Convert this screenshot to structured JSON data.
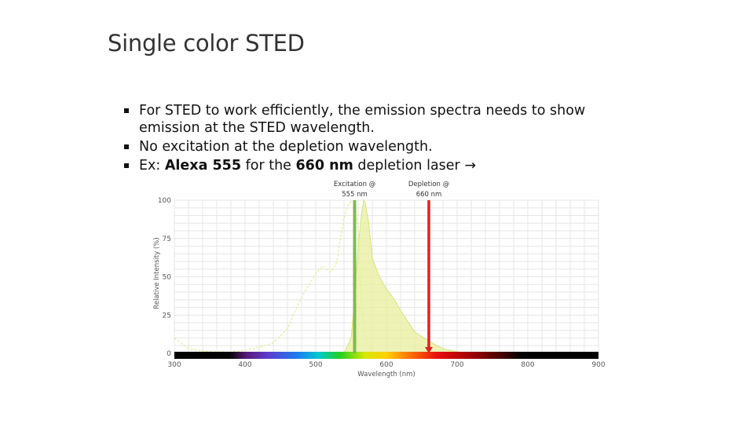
{
  "slide": {
    "title": "Single color STED",
    "bullets": [
      {
        "text": "For STED to work efficiently, the emission spectra needs to show emission at the STED wavelength."
      },
      {
        "text": "No excitation at the depletion wavelength."
      },
      {
        "parts": [
          "Ex: ",
          "Alexa 555",
          " for the ",
          "660 nm",
          " depletion laser ",
          "→"
        ]
      }
    ]
  },
  "chart_data": {
    "type": "area",
    "xlabel": "Wavelength (nm)",
    "ylabel": "Relative Intensity (%)",
    "xlim": [
      300,
      900
    ],
    "ylim": [
      0,
      100
    ],
    "x_ticks": [
      "300",
      "400",
      "500",
      "600",
      "700",
      "800",
      "900"
    ],
    "y_ticks": [
      "100",
      "75",
      "50",
      "25",
      "0"
    ],
    "grid": true,
    "spectrum_band": true,
    "series": [
      {
        "role": "excitation",
        "style": "dashed",
        "color": "#e4ee9a",
        "x": [
          300,
          320,
          340,
          360,
          380,
          400,
          420,
          440,
          460,
          480,
          500,
          510,
          515,
          520,
          525,
          530,
          535,
          540,
          545,
          550,
          555,
          560,
          565,
          570,
          580
        ],
        "y": [
          10,
          3,
          1.5,
          1,
          1,
          2,
          4,
          7,
          16,
          37,
          52,
          57,
          55,
          53,
          55,
          60,
          75,
          88,
          96,
          99,
          100,
          80,
          30,
          10,
          2
        ]
      },
      {
        "role": "emission",
        "style": "filled",
        "color": "#e8ef9c",
        "x": [
          540,
          550,
          555,
          560,
          565,
          568,
          570,
          575,
          580,
          590,
          600,
          610,
          620,
          640,
          660,
          680,
          700,
          720
        ],
        "y": [
          0,
          10,
          35,
          70,
          92,
          100,
          98,
          85,
          62,
          50,
          42,
          36,
          28,
          14,
          8,
          3,
          1,
          0
        ]
      }
    ],
    "laser_lines": [
      {
        "label_line1": "Excitation @",
        "label_line2": "555 nm",
        "wavelength": 555,
        "color": "#7dbc4a"
      },
      {
        "label_line1": "Depletion @",
        "label_line2": "660 nm",
        "wavelength": 660,
        "color": "#e02020"
      }
    ]
  }
}
